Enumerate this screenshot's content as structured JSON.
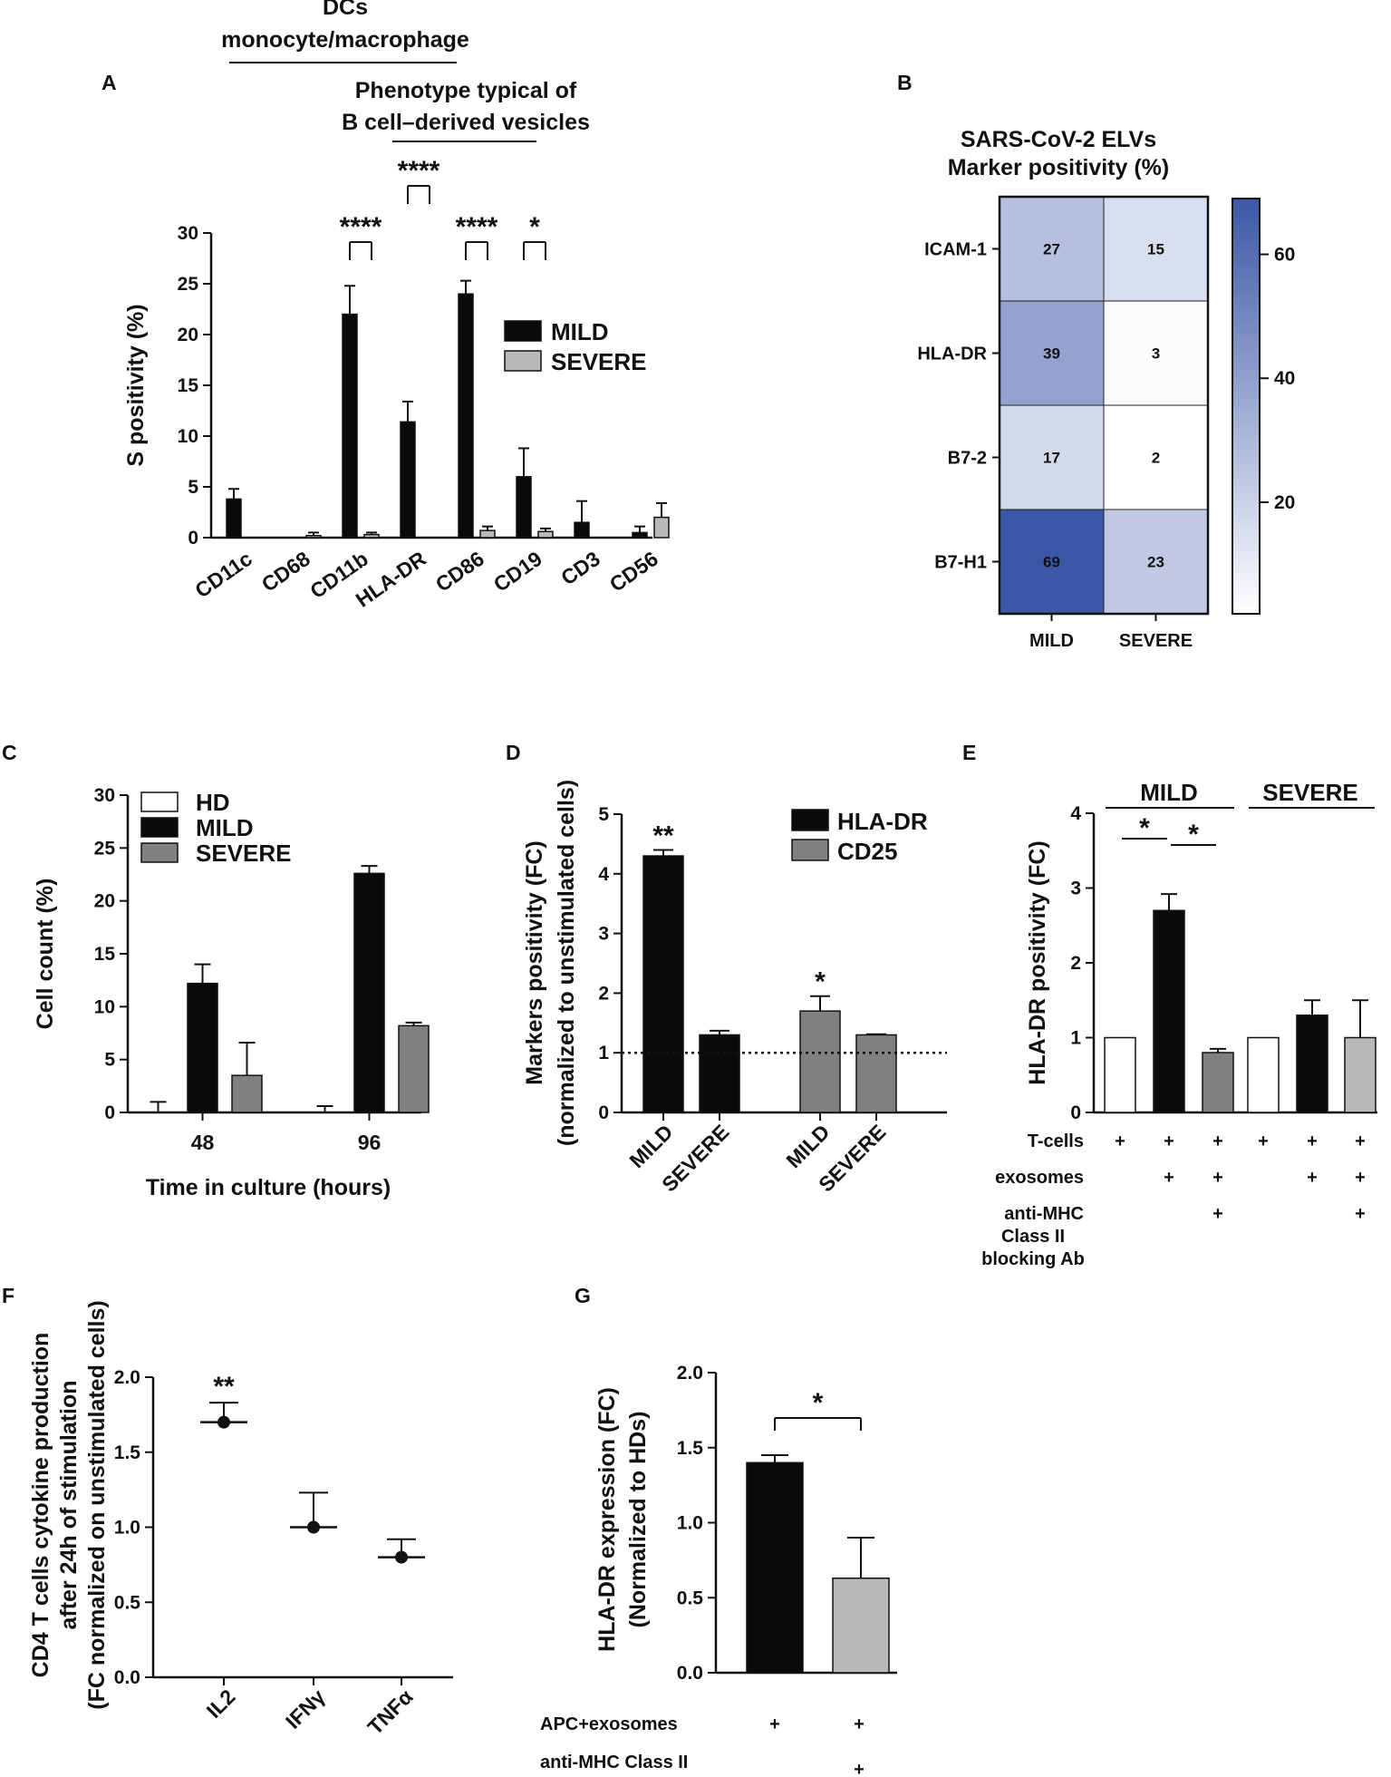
{
  "figure": {
    "panel_letters": [
      "A",
      "B",
      "C",
      "D",
      "E",
      "F",
      "G"
    ],
    "colors": {
      "black": "#0a0a0a",
      "light_gray": "#b9b9b9",
      "mid_gray": "#808080",
      "white": "#ffffff",
      "heat_high": "#3b57a6",
      "heat_low": "#ffffff"
    }
  },
  "chart_data": [
    {
      "id": "A",
      "type": "bar",
      "categories": [
        "CD11c",
        "CD68",
        "CD11b",
        "HLA-DR",
        "CD86",
        "CD19",
        "CD3",
        "CD56"
      ],
      "series": [
        {
          "name": "MILD",
          "values": [
            3.8,
            0,
            22,
            11.4,
            24,
            6,
            1.5,
            0.5
          ],
          "errors": [
            1,
            0,
            2.8,
            2,
            1.3,
            2.8,
            2.1,
            0.6
          ]
        },
        {
          "name": "SEVERE",
          "values": [
            0,
            0.2,
            0.3,
            0,
            0.7,
            0.6,
            0,
            2
          ],
          "errors": [
            0,
            0.3,
            0.2,
            0,
            0.4,
            0.3,
            0,
            1.4
          ]
        }
      ],
      "ylabel": "S positivity (%)",
      "ylim": [
        0,
        30
      ],
      "yticks": [
        "0",
        "5",
        "10",
        "15",
        "20",
        "25",
        "30"
      ],
      "significance": [
        {
          "category": "CD11b",
          "label": "****"
        },
        {
          "category": "HLA-DR",
          "label": "****"
        },
        {
          "category": "CD86",
          "label": "****"
        },
        {
          "category": "CD19",
          "label": "*"
        }
      ],
      "annotations": [
        "DCs",
        "monocyte/macrophage",
        "Phenotype typical of",
        "B cell–derived vesicles"
      ]
    },
    {
      "id": "B",
      "type": "heatmap",
      "title_lines": [
        "SARS-CoV-2 ELVs",
        "Marker positivity (%)"
      ],
      "rows": [
        "ICAM-1",
        "HLA-DR",
        "B7-2",
        "B7-H1"
      ],
      "columns": [
        "MILD",
        "SEVERE"
      ],
      "values": [
        [
          27,
          15
        ],
        [
          39,
          3
        ],
        [
          17,
          2
        ],
        [
          69,
          23
        ]
      ],
      "value_labels": [
        [
          "27",
          "15"
        ],
        [
          "39",
          "3"
        ],
        [
          "17",
          "2"
        ],
        [
          "69",
          "23"
        ]
      ],
      "colorbar_range": [
        2,
        69
      ],
      "colorbar_ticks": [
        "20",
        "40",
        "60"
      ],
      "colorbar_tick_values": [
        20,
        40,
        60
      ]
    },
    {
      "id": "C",
      "type": "bar",
      "categories": [
        "48",
        "96"
      ],
      "series": [
        {
          "name": "HD",
          "values": [
            0,
            0
          ],
          "errors": [
            1,
            0.6
          ]
        },
        {
          "name": "MILD",
          "values": [
            12.2,
            22.6
          ],
          "errors": [
            1.8,
            0.7
          ]
        },
        {
          "name": "SEVERE",
          "values": [
            3.5,
            8.2
          ],
          "errors": [
            3.1,
            0.3
          ]
        }
      ],
      "xlabel": "Time in culture (hours)",
      "ylabel": "Cell count (%)",
      "ylim": [
        0,
        30
      ],
      "yticks": [
        "0",
        "5",
        "10",
        "15",
        "20",
        "25",
        "30"
      ]
    },
    {
      "id": "D",
      "type": "bar",
      "legend": [
        "HLA-DR",
        "CD25"
      ],
      "bars": [
        {
          "label": "MILD",
          "series": "HLA-DR",
          "value": 4.3,
          "error": 0.1
        },
        {
          "label": "SEVERE",
          "series": "HLA-DR",
          "value": 1.3,
          "error": 0.07
        },
        {
          "label": "MILD",
          "series": "CD25",
          "value": 1.7,
          "error": 0.25
        },
        {
          "label": "SEVERE",
          "series": "CD25",
          "value": 1.3,
          "error": 0.01
        }
      ],
      "ylabel_lines": [
        "Markers positivity (FC)",
        "(normalized to unstimulated cells)"
      ],
      "ylim": [
        0,
        5
      ],
      "yticks": [
        "0",
        "1",
        "2",
        "3",
        "4",
        "5"
      ],
      "reference_line": 1,
      "significance": [
        {
          "bar": 0,
          "label": "**"
        },
        {
          "bar": 2,
          "label": "*"
        }
      ]
    },
    {
      "id": "E",
      "type": "bar",
      "group_labels": [
        "MILD",
        "SEVERE"
      ],
      "values": [
        1,
        2.7,
        0.8,
        1,
        1.3,
        1
      ],
      "errors": [
        0,
        0.22,
        0.05,
        0,
        0.2,
        0.5
      ],
      "fill_series": [
        "white",
        "black",
        "mid_gray",
        "white",
        "black",
        "light_gray"
      ],
      "ylabel": "HLA-DR positivity (FC)",
      "ylim": [
        0,
        4
      ],
      "yticks": [
        "0",
        "1",
        "2",
        "3",
        "4"
      ],
      "significance": [
        {
          "from": 0,
          "to": 1,
          "label": "*"
        },
        {
          "from": 1,
          "to": 2,
          "label": "*"
        }
      ],
      "conditions": [
        {
          "label": "T-cells",
          "marks": [
            "+",
            "+",
            "+",
            "+",
            "+",
            "+"
          ]
        },
        {
          "label": "exosomes",
          "marks": [
            "",
            "+",
            "+",
            "",
            "+",
            "+"
          ]
        },
        {
          "label": "anti-MHC",
          "marks": [
            "",
            "",
            "+",
            "",
            "",
            "+"
          ]
        }
      ],
      "condition_extra_lines": [
        "Class II",
        "blocking Ab"
      ]
    },
    {
      "id": "F",
      "type": "scatter",
      "categories": [
        "IL2",
        "IFNγ",
        "TNFα"
      ],
      "values": [
        1.7,
        1.0,
        0.8
      ],
      "errors": [
        0.13,
        0.23,
        0.12
      ],
      "ylabel_lines": [
        "CD4 T cells cytokine production",
        "after 24h of stimulation",
        "(FC normalized on unstimulated cells)"
      ],
      "ylim": [
        0,
        2
      ],
      "yticks": [
        "0.0",
        "0.5",
        "1.0",
        "1.5",
        "2.0"
      ],
      "yticks_values": [
        0,
        0.5,
        1,
        1.5,
        2
      ],
      "significance": [
        {
          "category": "IL2",
          "label": "**"
        }
      ]
    },
    {
      "id": "G",
      "type": "bar",
      "values": [
        1.4,
        0.63
      ],
      "errors": [
        0.05,
        0.27
      ],
      "fill_series": [
        "black",
        "light_gray"
      ],
      "ylabel_lines": [
        "HLA-DR expression (FC)",
        "(Normalized to HDs)"
      ],
      "ylim": [
        0,
        2
      ],
      "yticks": [
        "0.0",
        "0.5",
        "1.0",
        "1.5",
        "2.0"
      ],
      "yticks_values": [
        0,
        0.5,
        1,
        1.5,
        2
      ],
      "significance": [
        {
          "from": 0,
          "to": 1,
          "label": "*"
        }
      ],
      "conditions": [
        {
          "label": "APC+exosomes",
          "marks": [
            "+",
            "+"
          ]
        },
        {
          "label": "anti-MHC Class II",
          "marks": [
            "",
            "+"
          ]
        }
      ]
    }
  ]
}
